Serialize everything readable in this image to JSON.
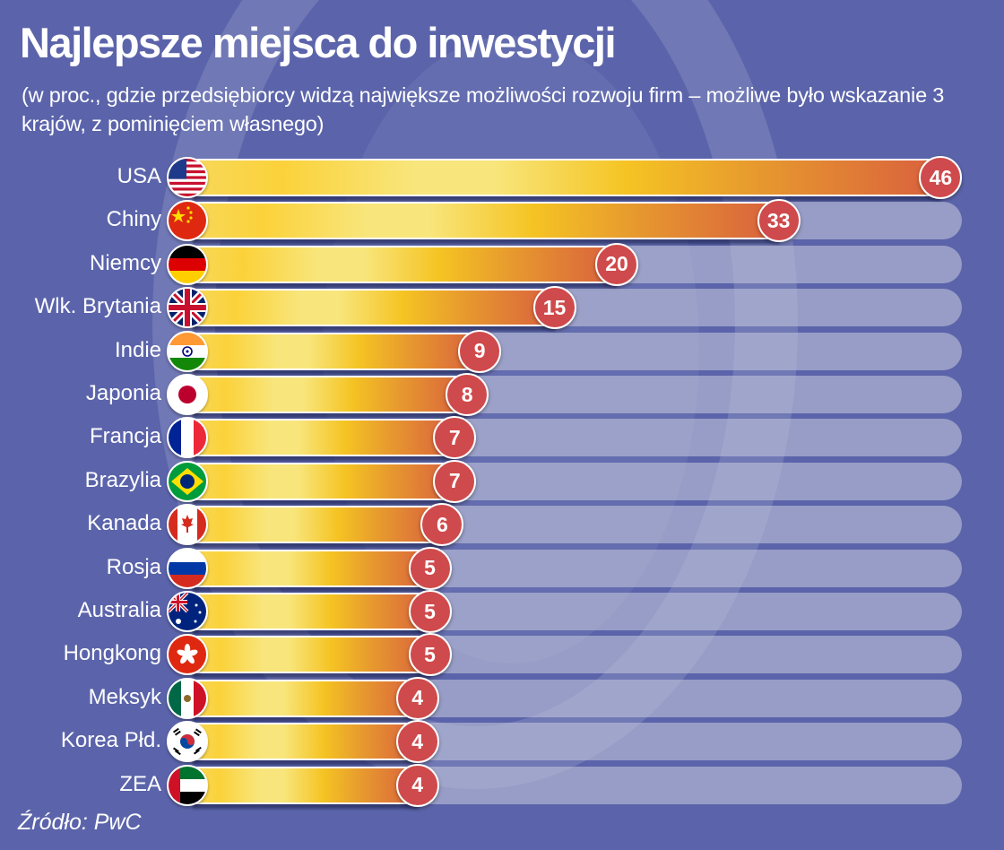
{
  "header": {
    "title": "Najlepsze miejsca do inwestycji",
    "subtitle": "(w proc., gdzie przedsiębiorcy widzą największe możliwości rozwoju firm – możliwe było wskazanie 3 krajów, z pominięciem własnego)"
  },
  "footer": {
    "source": "Źródło: PwC"
  },
  "colors": {
    "background": "#5b64aa",
    "badge": "#cf4a4c",
    "track": "#c8ccdc",
    "bar_start": "#f7d85a",
    "bar_end": "#d9603e"
  },
  "chart_data": {
    "type": "bar",
    "orientation": "horizontal",
    "title": "Najlepsze miejsca do inwestycji",
    "subtitle": "(w proc., gdzie przedsiębiorcy widzą największe możliwości rozwoju firm – możliwe było wskazanie 3 krajów, z pominięciem własnego)",
    "xlabel": "",
    "ylabel": "",
    "unit": "%",
    "xlim": [
      0,
      46
    ],
    "grid": false,
    "legend": "none",
    "categories": [
      "USA",
      "Chiny",
      "Niemcy",
      "Wlk. Brytania",
      "Indie",
      "Japonia",
      "Francja",
      "Brazylia",
      "Kanada",
      "Rosja",
      "Australia",
      "Hongkong",
      "Meksyk",
      "Korea Płd.",
      "ZEA"
    ],
    "labels": [
      "USA",
      "Chiny",
      "Niemcy",
      "Wlk. Brytania",
      "Indie",
      "Japonia",
      "Francja",
      "Brazylia",
      "Kanada",
      "Rosja",
      "Australia",
      "Hongkong",
      "Meksyk",
      "Korea Płd.",
      "ZEA"
    ],
    "flags": [
      "us-flag-icon",
      "cn-flag-icon",
      "de-flag-icon",
      "gb-flag-icon",
      "in-flag-icon",
      "jp-flag-icon",
      "fr-flag-icon",
      "br-flag-icon",
      "ca-flag-icon",
      "ru-flag-icon",
      "au-flag-icon",
      "hk-flag-icon",
      "mx-flag-icon",
      "kr-flag-icon",
      "ae-flag-icon"
    ],
    "values": [
      46,
      33,
      20,
      15,
      9,
      8,
      7,
      7,
      6,
      5,
      5,
      5,
      4,
      4,
      4
    ]
  }
}
